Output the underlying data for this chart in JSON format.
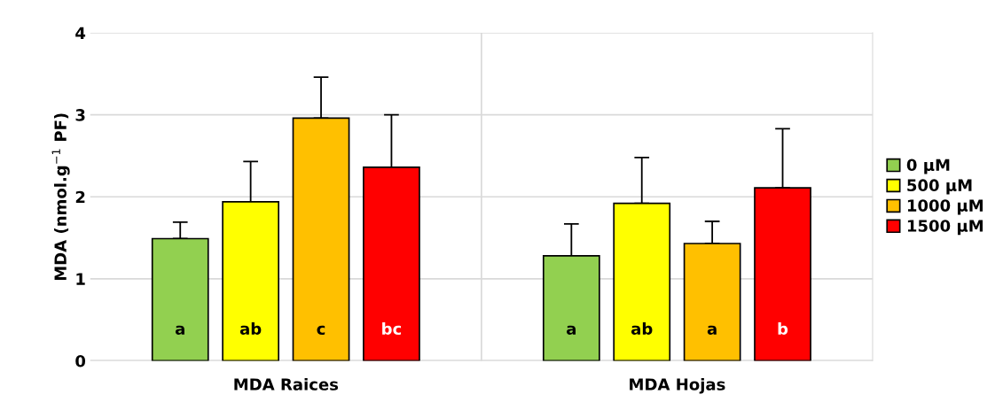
{
  "chart_data": {
    "type": "bar",
    "ylabel": "MDA (nmol.g$^{−1}$ PF)",
    "categories": [
      "MDA Raices",
      "MDA Hojas"
    ],
    "series": [
      {
        "name": "0 µM",
        "color": "#92d050",
        "values": [
          1.49,
          1.28
        ],
        "errors": [
          [
            1.49,
            1.69
          ],
          [
            1.28,
            1.67
          ]
        ],
        "value_labels": [
          "a",
          "a"
        ]
      },
      {
        "name": "500 µM",
        "color": "#ffff00",
        "values": [
          1.94,
          1.92
        ],
        "errors": [
          [
            1.94,
            2.43
          ],
          [
            1.92,
            2.48
          ]
        ],
        "value_labels": [
          "ab",
          "ab"
        ]
      },
      {
        "name": "1000 µM",
        "color": "#ffc000",
        "values": [
          2.96,
          1.43
        ],
        "errors": [
          [
            2.96,
            3.46
          ],
          [
            1.43,
            1.7
          ]
        ],
        "value_labels": [
          "c",
          "a"
        ]
      },
      {
        "name": "1500 µM",
        "color": "#ff0000",
        "values": [
          2.36,
          2.11
        ],
        "errors": [
          [
            2.36,
            3.0
          ],
          [
            2.11,
            2.83
          ]
        ],
        "value_labels": [
          "bc",
          "b"
        ]
      }
    ],
    "ylim": [
      0,
      4
    ],
    "yticks": [
      0,
      1,
      2,
      3,
      4
    ],
    "grid": "y",
    "legend": "right"
  }
}
